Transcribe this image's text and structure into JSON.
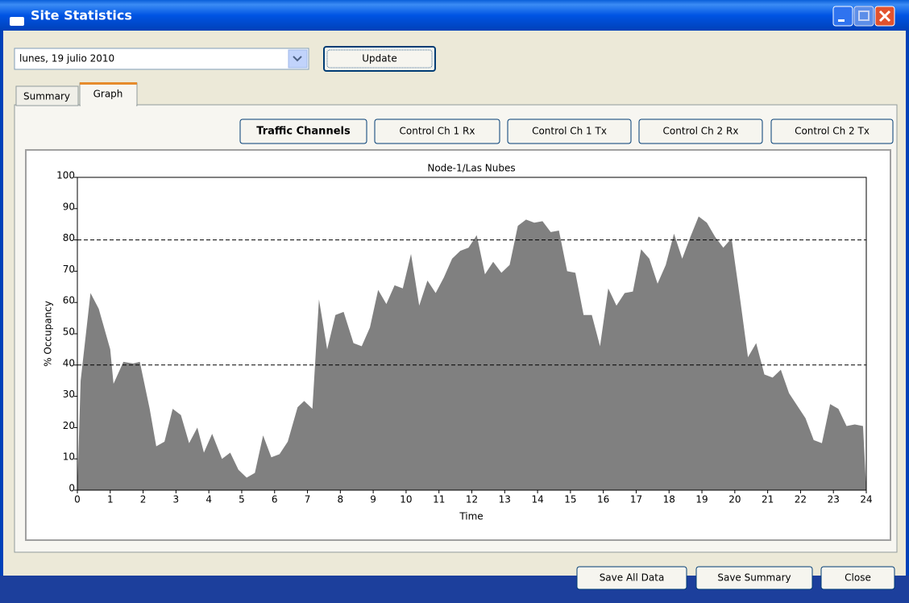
{
  "window": {
    "title": "Site Statistics"
  },
  "toolbar": {
    "date": "lunes, 19 julio 2010",
    "update_button": "Update"
  },
  "tabs": [
    "Summary",
    "Graph"
  ],
  "channel_buttons": [
    "Traffic Channels",
    "Control Ch 1 Rx",
    "Control Ch 1 Tx",
    "Control Ch 2 Rx",
    "Control Ch 2 Tx"
  ],
  "chart_data": {
    "type": "area",
    "title": "Node-1/Las Nubes",
    "x_label": "Time",
    "y_label": "% Occupancy",
    "x": [
      0,
      0.1,
      0.4,
      0.65,
      1.0,
      1.1,
      1.4,
      1.7,
      1.9,
      2.2,
      2.4,
      2.65,
      2.9,
      3.15,
      3.4,
      3.65,
      3.85,
      4.1,
      4.4,
      4.65,
      4.9,
      5.15,
      5.4,
      5.65,
      5.9,
      6.15,
      6.4,
      6.7,
      6.9,
      7.15,
      7.35,
      7.6,
      7.85,
      8.1,
      8.4,
      8.65,
      8.9,
      9.15,
      9.4,
      9.65,
      9.9,
      10.15,
      10.4,
      10.65,
      10.9,
      11.15,
      11.4,
      11.65,
      11.9,
      12.15,
      12.4,
      12.65,
      12.9,
      13.15,
      13.4,
      13.65,
      13.9,
      14.15,
      14.4,
      14.65,
      14.9,
      15.15,
      15.4,
      15.65,
      15.9,
      16.15,
      16.4,
      16.65,
      16.9,
      17.15,
      17.4,
      17.65,
      17.9,
      18.15,
      18.4,
      18.65,
      18.9,
      19.15,
      19.4,
      19.65,
      19.9,
      20.15,
      20.4,
      20.65,
      20.9,
      21.15,
      21.4,
      21.65,
      21.9,
      22.15,
      22.4,
      22.65,
      22.9,
      23.15,
      23.4,
      23.65,
      23.9,
      24
    ],
    "values": [
      0,
      35,
      63,
      58,
      45,
      34,
      41,
      40.5,
      41,
      26,
      14,
      15.5,
      26,
      24,
      15,
      20,
      12,
      18,
      10,
      12,
      6.5,
      4,
      5.5,
      17.5,
      10.5,
      11.5,
      15.5,
      26.5,
      28.5,
      26,
      61,
      45,
      56,
      57,
      47,
      46,
      52,
      64,
      59.5,
      65.5,
      64.5,
      75.5,
      59,
      67,
      63,
      68,
      74,
      76.5,
      77.5,
      81.5,
      69,
      73,
      69.5,
      72,
      84.5,
      86.5,
      85.5,
      86,
      82.5,
      83,
      70,
      69.5,
      56,
      56,
      46,
      64.5,
      59,
      63,
      63.5,
      77,
      74,
      66,
      72,
      82,
      74,
      81,
      87.5,
      85.5,
      81,
      77.5,
      80.5,
      62,
      42.5,
      47,
      37,
      36,
      38.5,
      31,
      27,
      23,
      16,
      15,
      27.5,
      26,
      20.5,
      21,
      20.5,
      0
    ],
    "color": "#808080",
    "xlim": [
      0,
      24
    ],
    "xticks": [
      0,
      1,
      2,
      3,
      4,
      5,
      6,
      7,
      8,
      9,
      10,
      11,
      12,
      13,
      14,
      15,
      16,
      17,
      18,
      19,
      20,
      21,
      22,
      23,
      24
    ],
    "ylim": [
      0,
      100
    ],
    "yticks": [
      0,
      10,
      20,
      30,
      40,
      50,
      60,
      70,
      80,
      90,
      100
    ],
    "reference_lines": [
      40,
      80
    ]
  },
  "footer_buttons": [
    "Save All Data",
    "Save Summary",
    "Close"
  ]
}
